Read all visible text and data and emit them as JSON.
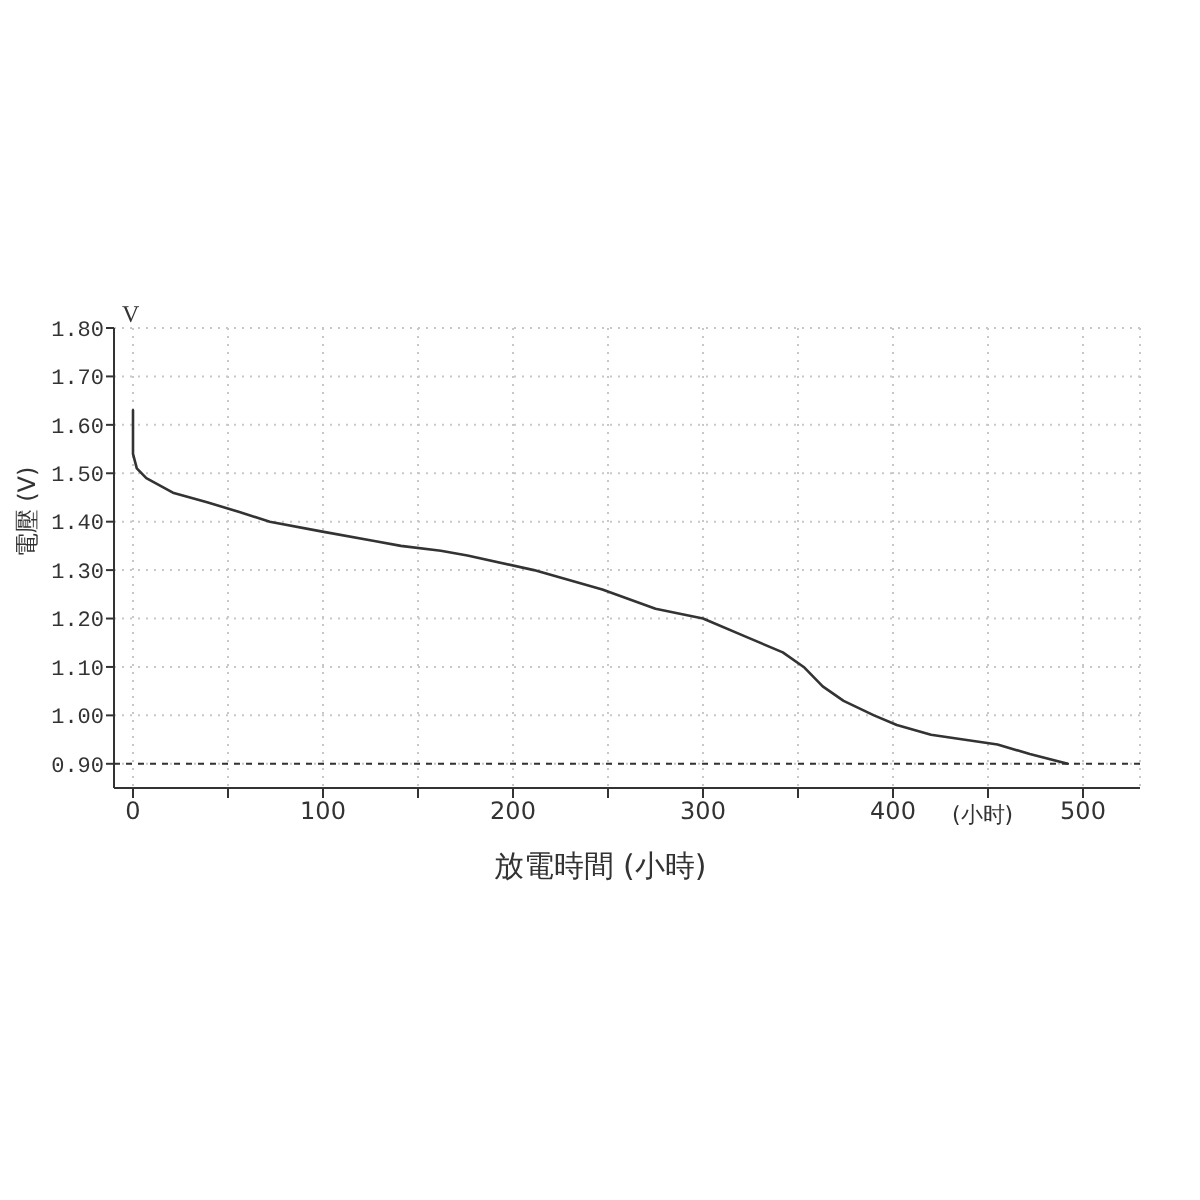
{
  "chart_data": {
    "type": "line",
    "xlabel": "放電時間 (小時)",
    "ylabel": "電壓 (V)",
    "annotations": [
      "V",
      "(小时)"
    ],
    "x": [
      0,
      0,
      2,
      7,
      21,
      39,
      56,
      72,
      99,
      127,
      141,
      162,
      176,
      211,
      247,
      275,
      300,
      324,
      342,
      353,
      363,
      374,
      390,
      402,
      420,
      437,
      455,
      472,
      492
    ],
    "series": [
      {
        "color": "#333333",
        "values": [
          1.63,
          1.54,
          1.51,
          1.49,
          1.46,
          1.44,
          1.42,
          1.4,
          1.38,
          1.36,
          1.35,
          1.34,
          1.33,
          1.3,
          1.26,
          1.22,
          1.2,
          1.16,
          1.13,
          1.1,
          1.06,
          1.03,
          1.0,
          0.98,
          0.96,
          0.95,
          0.94,
          0.92,
          0.9
        ]
      }
    ],
    "xlim": [
      -10,
      530
    ],
    "ylim": [
      0.85,
      1.8
    ],
    "xticks": [
      0,
      {
        "value": 50,
        "label": null
      },
      100,
      {
        "value": 150,
        "label": null
      },
      200,
      {
        "value": 250,
        "label": null
      },
      300,
      {
        "value": 350,
        "label": null
      },
      400,
      {
        "value": 450,
        "label": null
      },
      500
    ],
    "yticks": [
      {
        "value": 0.9,
        "label": "0.90"
      },
      {
        "value": 1.0,
        "label": "1.00"
      },
      {
        "value": 1.1,
        "label": "1.10"
      },
      {
        "value": 1.2,
        "label": "1.20"
      },
      {
        "value": 1.3,
        "label": "1.30"
      },
      {
        "value": 1.4,
        "label": "1.40"
      },
      {
        "value": 1.5,
        "label": "1.50"
      },
      {
        "value": 1.6,
        "label": "1.60"
      },
      {
        "value": 1.7,
        "label": "1.70"
      },
      {
        "value": 1.8,
        "label": "1.80"
      }
    ],
    "grid": true,
    "marker": "none",
    "line_style": "solid",
    "ref_lines": [
      {
        "axis": "y",
        "value": 0.9,
        "color": "#333333",
        "line_style": "dashed"
      }
    ]
  }
}
